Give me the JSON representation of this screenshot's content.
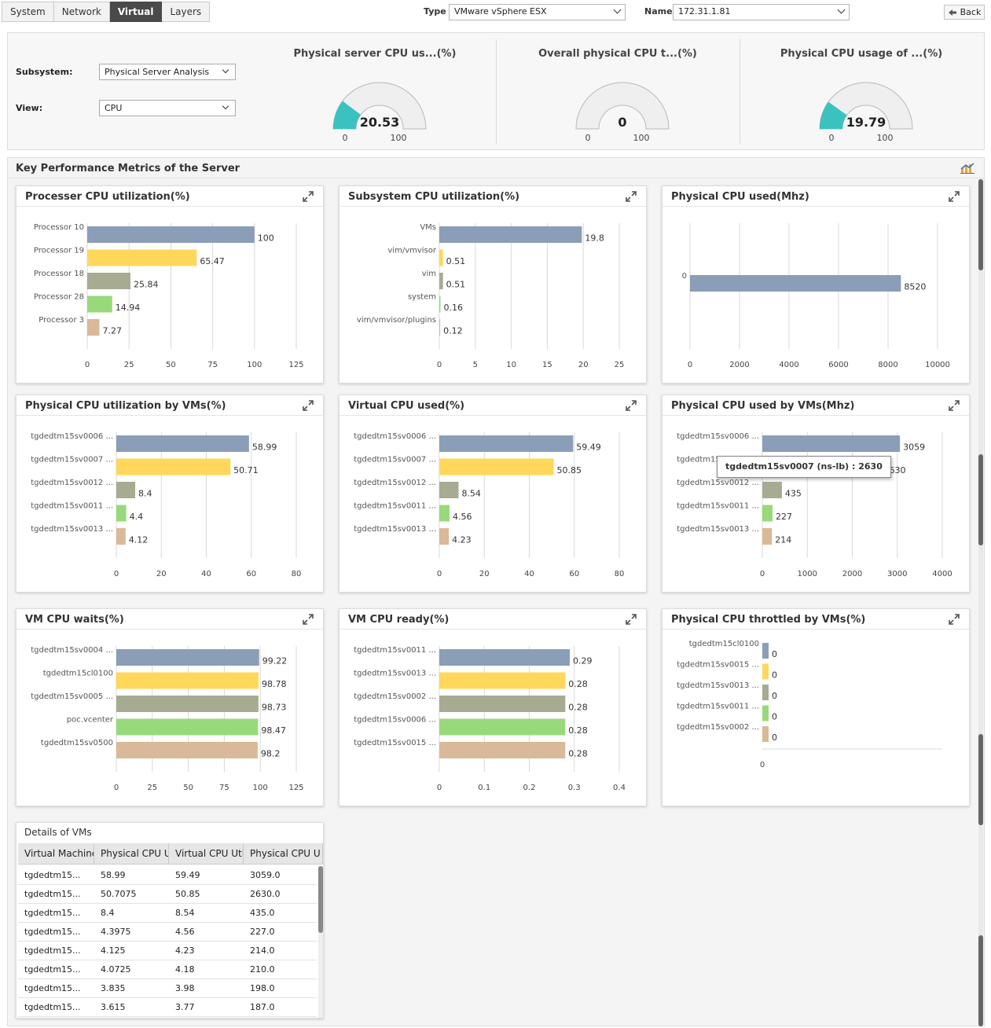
{
  "tabs": [
    "System",
    "Network",
    "Virtual",
    "Layers"
  ],
  "active_tab": "Virtual",
  "filters": {
    "type_label": "Type",
    "type_value": "VMware vSphere ESX",
    "name_label": "Name",
    "name_value": "172.31.1.81",
    "back_label": "Back"
  },
  "form": {
    "subsystem_label": "Subsystem:",
    "subsystem_value": "Physical Server Analysis",
    "view_label": "View:",
    "view_value": "CPU"
  },
  "gauges": [
    {
      "title": "Physical server CPU us...(%)",
      "value": "20.53",
      "fraction": 0.2053,
      "min": "0",
      "max": "100"
    },
    {
      "title": "Overall physical CPU t...(%)",
      "value": "0",
      "fraction": 0,
      "min": "0",
      "max": "100"
    },
    {
      "title": "Physical CPU usage of ...(%)",
      "value": "19.79",
      "fraction": 0.1979,
      "min": "0",
      "max": "100"
    }
  ],
  "section_title": "Key Performance Metrics of the Server",
  "colors": [
    "#8b9eb7",
    "#ffd75a",
    "#a6ab92",
    "#98da7b",
    "#d9b997"
  ],
  "charts": [
    {
      "title": "Processer CPU utilization(%)",
      "type": "bar",
      "categories": [
        "Processor 10",
        "Processor 19",
        "Processor 18",
        "Processor 28",
        "Processor 3"
      ],
      "values": [
        100,
        65.47,
        25.84,
        14.94,
        7.27
      ],
      "value_labels": [
        "100",
        "65.47",
        "25.84",
        "14.94",
        "7.27"
      ],
      "xlim": [
        0,
        125
      ],
      "ticks": [
        "0",
        "25",
        "50",
        "75",
        "100",
        "125"
      ]
    },
    {
      "title": "Subsystem CPU utilization(%)",
      "type": "bar",
      "categories": [
        "VMs",
        "vim/vmvisor",
        "vim",
        "system",
        "vim/vmvisor/plugins"
      ],
      "values": [
        19.8,
        0.51,
        0.51,
        0.16,
        0.12
      ],
      "value_labels": [
        "19.8",
        "0.51",
        "0.51",
        "0.16",
        "0.12"
      ],
      "xlim": [
        0,
        25
      ],
      "ticks": [
        "0",
        "5",
        "10",
        "15",
        "20",
        "25"
      ]
    },
    {
      "title": "Physical CPU used(Mhz)",
      "type": "bar",
      "categories": [
        "0"
      ],
      "values": [
        8520
      ],
      "value_labels": [
        "8520"
      ],
      "xlim": [
        0,
        10000
      ],
      "ticks": [
        "0",
        "2000",
        "4000",
        "6000",
        "8000",
        "10000"
      ]
    },
    {
      "title": "Physical CPU utilization by VMs(%)",
      "type": "bar",
      "categories": [
        "tgdedtm15sv0006 ...",
        "tgdedtm15sv0007 ...",
        "tgdedtm15sv0012 ...",
        "tgdedtm15sv0011 ...",
        "tgdedtm15sv0013 ..."
      ],
      "values": [
        58.99,
        50.71,
        8.4,
        4.4,
        4.12
      ],
      "value_labels": [
        "58.99",
        "50.71",
        "8.4",
        "4.4",
        "4.12"
      ],
      "xlim": [
        0,
        80
      ],
      "ticks": [
        "0",
        "20",
        "40",
        "60",
        "80"
      ]
    },
    {
      "title": "Virtual CPU used(%)",
      "type": "bar",
      "categories": [
        "tgdedtm15sv0006 ...",
        "tgdedtm15sv0007 ...",
        "tgdedtm15sv0012 ...",
        "tgdedtm15sv0011 ...",
        "tgdedtm15sv0013 ..."
      ],
      "values": [
        59.49,
        50.85,
        8.54,
        4.56,
        4.23
      ],
      "value_labels": [
        "59.49",
        "50.85",
        "8.54",
        "4.56",
        "4.23"
      ],
      "xlim": [
        0,
        80
      ],
      "ticks": [
        "0",
        "20",
        "40",
        "60",
        "80"
      ]
    },
    {
      "title": "Physical CPU used by VMs(Mhz)",
      "type": "bar",
      "categories": [
        "tgdedtm15sv0006 ...",
        "tgdedtm15sv0007 ...",
        "tgdedtm15sv0012 ...",
        "tgdedtm15sv0011 ...",
        "tgdedtm15sv0013 ..."
      ],
      "values": [
        3059,
        2630,
        435,
        227,
        214
      ],
      "value_labels": [
        "3059",
        "2630",
        "435",
        "227",
        "214"
      ],
      "xlim": [
        0,
        4000
      ],
      "ticks": [
        "0",
        "1000",
        "2000",
        "3000",
        "4000"
      ]
    },
    {
      "title": "VM CPU waits(%)",
      "type": "bar",
      "categories": [
        "tgdedtm15sv0004 ...",
        "tgdedtm15cl0100",
        "tgdedtm15sv0005 ...",
        "poc.vcenter",
        "tgdedtm15sv0500"
      ],
      "values": [
        99.22,
        98.78,
        98.73,
        98.47,
        98.2
      ],
      "value_labels": [
        "99.22",
        "98.78",
        "98.73",
        "98.47",
        "98.2"
      ],
      "xlim": [
        0,
        125
      ],
      "ticks": [
        "0",
        "25",
        "50",
        "75",
        "100",
        "125"
      ]
    },
    {
      "title": "VM CPU ready(%)",
      "type": "bar",
      "categories": [
        "tgdedtm15sv0011 ...",
        "tgdedtm15sv0013 ...",
        "tgdedtm15sv0002 ...",
        "tgdedtm15sv0006 ...",
        "tgdedtm15sv0015 ..."
      ],
      "values": [
        0.29,
        0.28,
        0.28,
        0.28,
        0.28
      ],
      "value_labels": [
        "0.29",
        "0.28",
        "0.28",
        "0.28",
        "0.28"
      ],
      "xlim": [
        0,
        0.4
      ],
      "ticks": [
        "0",
        "0.1",
        "0.2",
        "0.3",
        "0.4"
      ]
    },
    {
      "title": "Physical CPU throttled by VMs(%)",
      "type": "bar",
      "categories": [
        "tgdedtm15cl0100",
        "tgdedtm15sv0015 ...",
        "tgdedtm15sv0013 ...",
        "tgdedtm15sv0011 ...",
        "tgdedtm15sv0002 ..."
      ],
      "values": [
        0,
        0,
        0,
        0,
        0
      ],
      "value_labels": [
        "0",
        "0",
        "0",
        "0",
        "0"
      ],
      "xlim": [
        0,
        1
      ],
      "ticks": [
        "0"
      ]
    }
  ],
  "tooltip": "tgdedtm15sv0007 (ns-lb) : 2630",
  "table": {
    "title": "Details of VMs",
    "columns": [
      "Virtual Machine",
      "Physical CPU U",
      "Virtual CPU Uti",
      "Physical CPU U"
    ],
    "rows": [
      [
        "tgdedtm15...",
        "58.99",
        "59.49",
        "3059.0"
      ],
      [
        "tgdedtm15...",
        "50.7075",
        "50.85",
        "2630.0"
      ],
      [
        "tgdedtm15...",
        "8.4",
        "8.54",
        "435.0"
      ],
      [
        "tgdedtm15...",
        "4.3975",
        "4.56",
        "227.0"
      ],
      [
        "tgdedtm15...",
        "4.125",
        "4.23",
        "214.0"
      ],
      [
        "tgdedtm15...",
        "4.0725",
        "4.18",
        "210.0"
      ],
      [
        "tgdedtm15...",
        "3.835",
        "3.98",
        "198.0"
      ],
      [
        "tgdedtm15...",
        "3.615",
        "3.77",
        "187.0"
      ]
    ]
  }
}
